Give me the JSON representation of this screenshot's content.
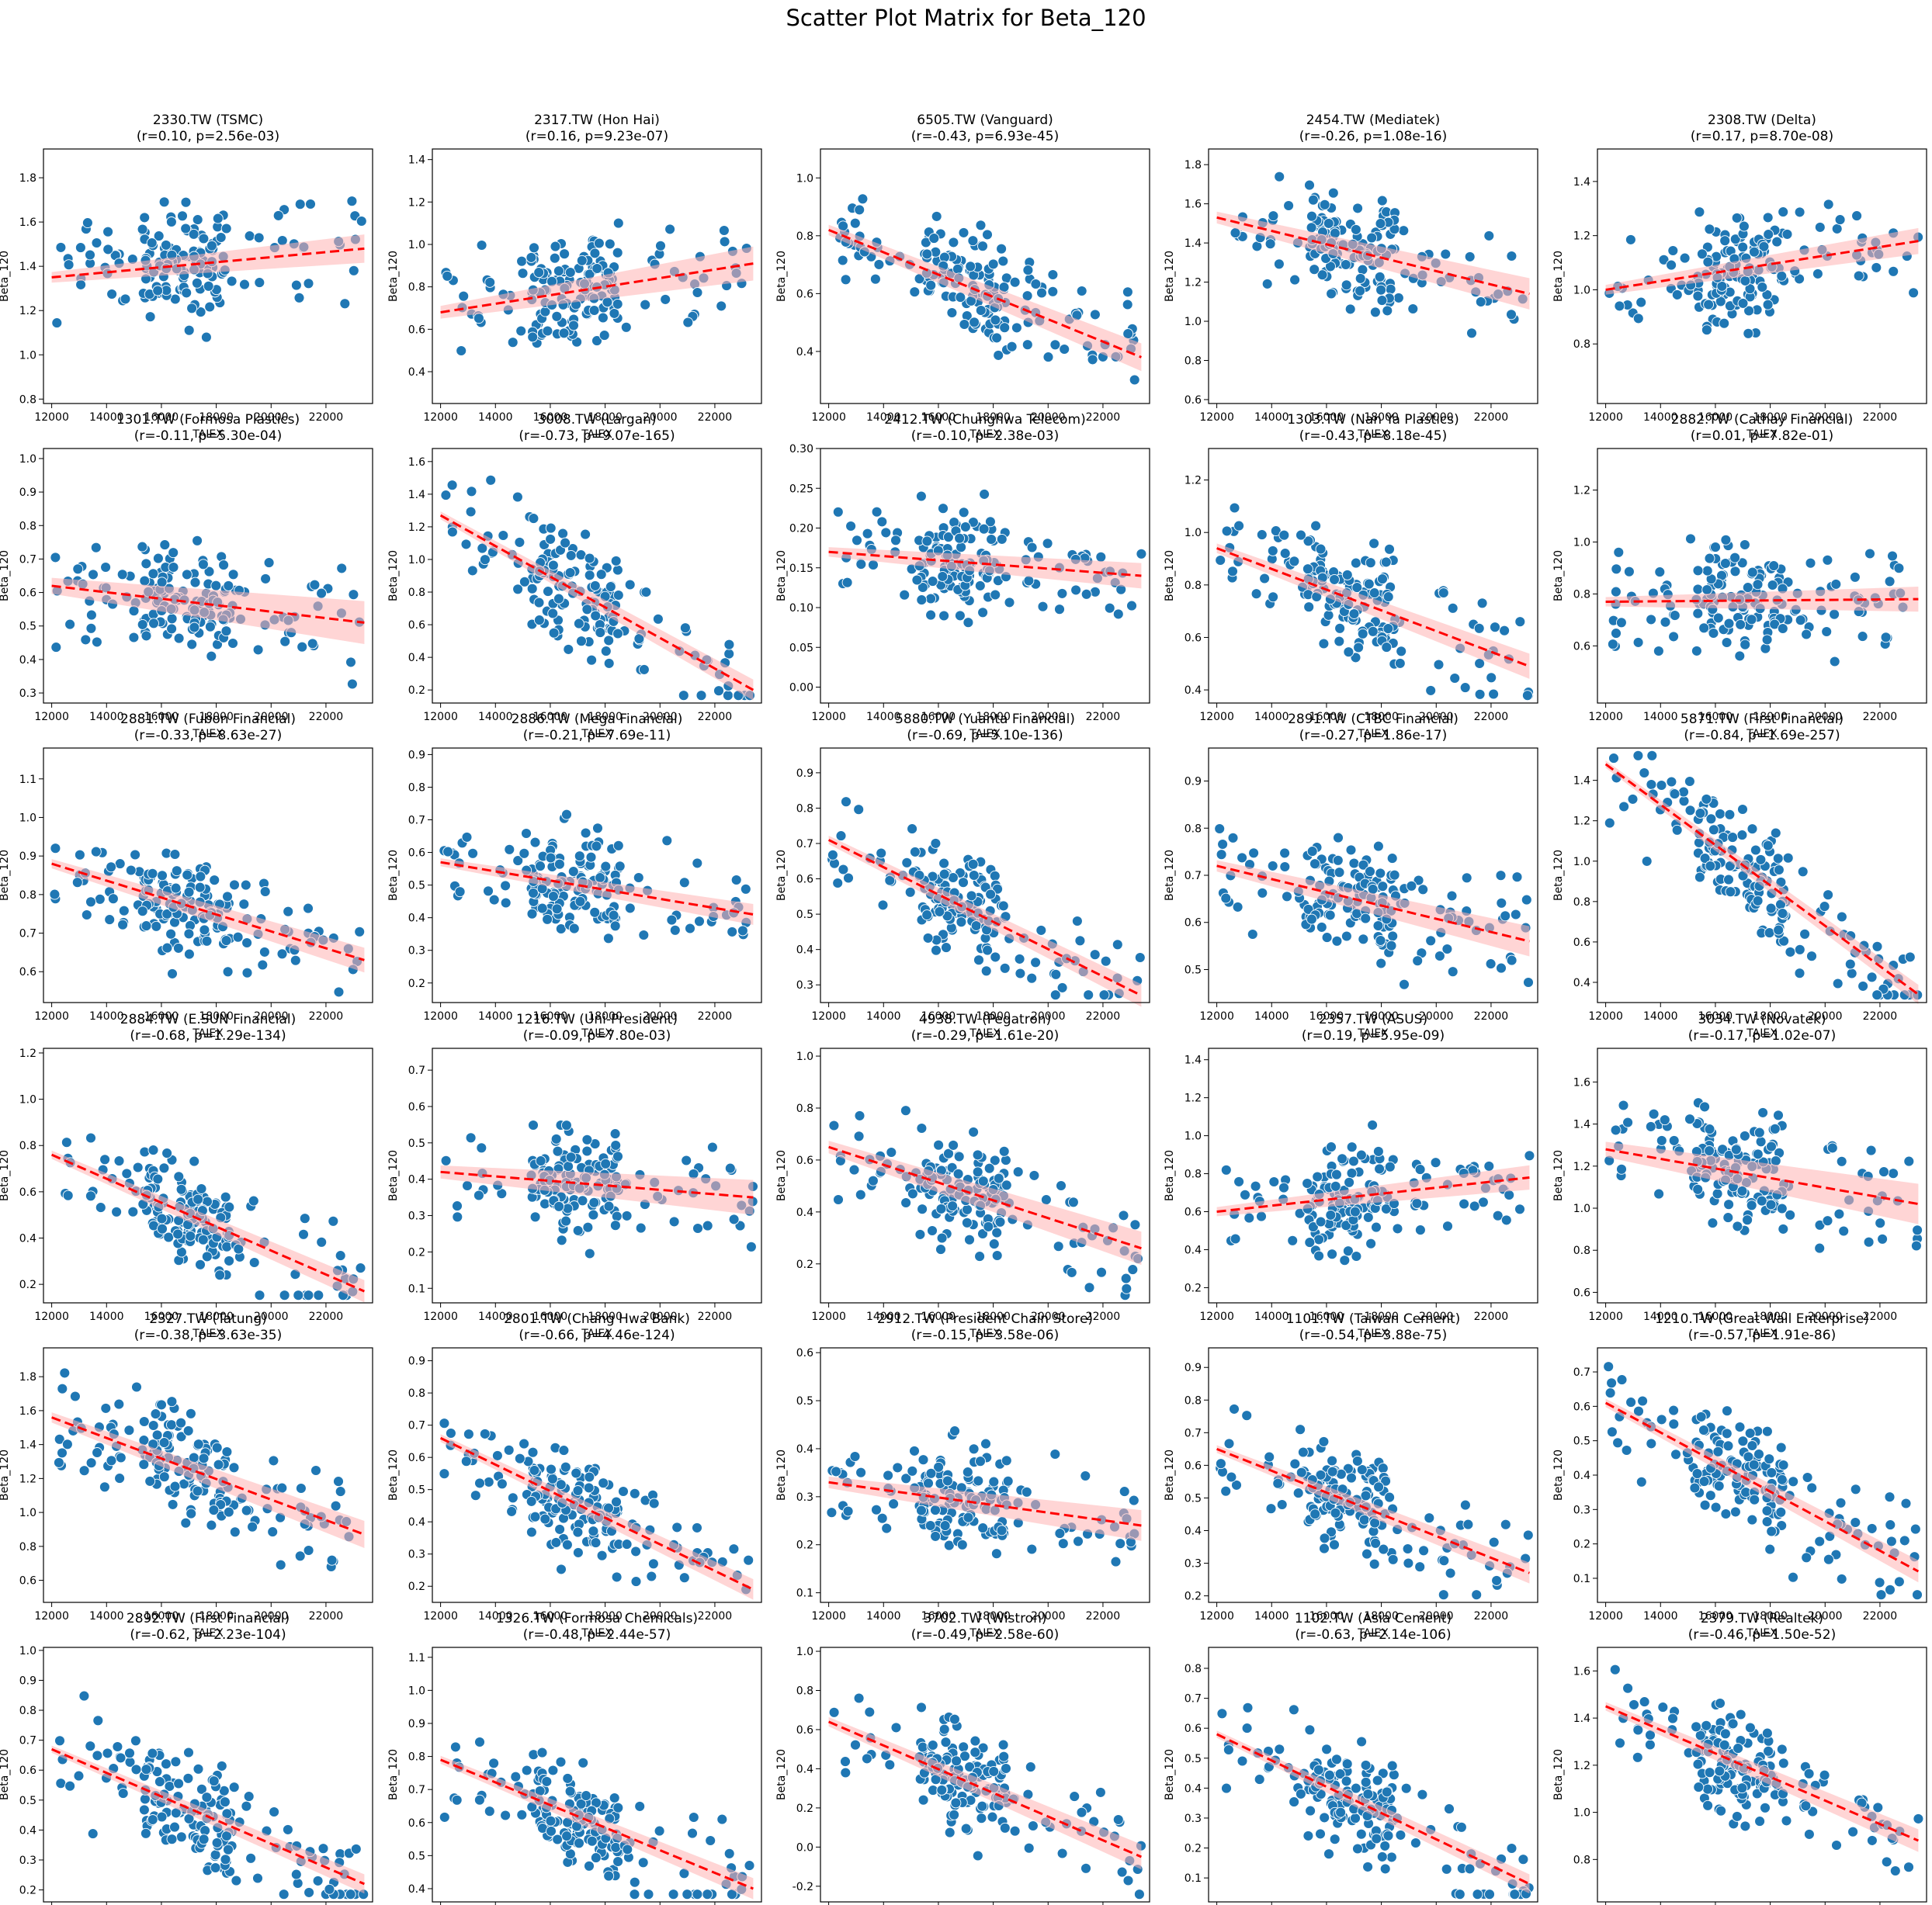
{
  "figure": {
    "title": "Scatter Plot Matrix for Beta_120",
    "xlabel": "TAIEX",
    "ylabel": "Beta_120",
    "xticks": [
      12000,
      14000,
      16000,
      18000,
      20000,
      22000
    ],
    "xlim": [
      11700,
      23700
    ]
  },
  "colors": {
    "points": "#1f77b4",
    "point_edge": "#ffffff",
    "fit_line": "#ff0000",
    "ci_band": "#ffb3b3"
  },
  "chart_data": [
    {
      "type": "scatter",
      "ticker": "2330.TW (TSMC)",
      "stats": "(r=0.10, p=2.56e-03)",
      "ylim": [
        0.78,
        1.93
      ],
      "yticks": [
        "0.8",
        "1.0",
        "1.2",
        "1.4",
        "1.6",
        "1.8"
      ],
      "fit": [
        1.35,
        1.48
      ],
      "ci": 0.04
    },
    {
      "type": "scatter",
      "ticker": "2317.TW (Hon Hai)",
      "stats": "(r=0.16, p=9.23e-07)",
      "ylim": [
        0.25,
        1.45
      ],
      "yticks": [
        "0.4",
        "0.6",
        "0.8",
        "1.0",
        "1.2",
        "1.4"
      ],
      "fit": [
        0.68,
        0.91
      ],
      "ci": 0.05
    },
    {
      "type": "scatter",
      "ticker": "6505.TW (Vanguard)",
      "stats": "(r=-0.43, p=6.93e-45)",
      "ylim": [
        0.22,
        1.1
      ],
      "yticks": [
        "0.4",
        "0.6",
        "0.8",
        "1.0"
      ],
      "fit": [
        0.82,
        0.38
      ],
      "ci": 0.03
    },
    {
      "type": "scatter",
      "ticker": "2454.TW (Mediatek)",
      "stats": "(r=-0.26, p=1.08e-16)",
      "ylim": [
        0.58,
        1.88
      ],
      "yticks": [
        "0.6",
        "0.8",
        "1.0",
        "1.2",
        "1.4",
        "1.6",
        "1.8"
      ],
      "fit": [
        1.53,
        1.14
      ],
      "ci": 0.05
    },
    {
      "type": "scatter",
      "ticker": "2308.TW (Delta)",
      "stats": "(r=0.17, p=8.70e-08)",
      "ylim": [
        0.58,
        1.52
      ],
      "yticks": [
        "0.8",
        "1.0",
        "1.2",
        "1.4"
      ],
      "fit": [
        1.0,
        1.18
      ],
      "ci": 0.03
    },
    {
      "type": "scatter",
      "ticker": "1301.TW (Formosa Plastics)",
      "stats": "(r=-0.11, p=5.30e-04)",
      "ylim": [
        0.27,
        1.03
      ],
      "yticks": [
        "0.3",
        "0.4",
        "0.5",
        "0.6",
        "0.7",
        "0.8",
        "0.9",
        "1.0"
      ],
      "fit": [
        0.62,
        0.51
      ],
      "ci": 0.04
    },
    {
      "type": "scatter",
      "ticker": "3008.TW (Largan)",
      "stats": "(r=-0.73, p=9.07e-165)",
      "ylim": [
        0.12,
        1.68
      ],
      "yticks": [
        "0.2",
        "0.4",
        "0.6",
        "0.8",
        "1.0",
        "1.2",
        "1.4",
        "1.6"
      ],
      "fit": [
        1.27,
        0.2
      ],
      "ci": 0.04
    },
    {
      "type": "scatter",
      "ticker": "2412.TW (Chunghwa Telecom)",
      "stats": "(r=-0.10, p=2.38e-03)",
      "ylim": [
        -0.02,
        0.3
      ],
      "yticks": [
        "0.00",
        "0.05",
        "0.10",
        "0.15",
        "0.20",
        "0.25",
        "0.30"
      ],
      "fit": [
        0.17,
        0.14
      ],
      "ci": 0.01
    },
    {
      "type": "scatter",
      "ticker": "1303.TW (Nan Ya Plastics)",
      "stats": "(r=-0.43, p=8.18e-45)",
      "ylim": [
        0.35,
        1.32
      ],
      "yticks": [
        "0.4",
        "0.6",
        "0.8",
        "1.0",
        "1.2"
      ],
      "fit": [
        0.94,
        0.49
      ],
      "ci": 0.03
    },
    {
      "type": "scatter",
      "ticker": "2882.TW (Cathay Financial)",
      "stats": "(r=0.01, p=7.82e-01)",
      "ylim": [
        0.38,
        1.36
      ],
      "yticks": [
        "0.6",
        "0.8",
        "1.0",
        "1.2"
      ],
      "fit": [
        0.77,
        0.78
      ],
      "ci": 0.03
    },
    {
      "type": "scatter",
      "ticker": "2881.TW (Fubon Financial)",
      "stats": "(r=-0.33, p=8.63e-27)",
      "ylim": [
        0.52,
        1.18
      ],
      "yticks": [
        "0.6",
        "0.7",
        "0.8",
        "0.9",
        "1.0",
        "1.1"
      ],
      "fit": [
        0.88,
        0.63
      ],
      "ci": 0.02
    },
    {
      "type": "scatter",
      "ticker": "2886.TW (Mega Financial)",
      "stats": "(r=-0.21, p=7.69e-11)",
      "ylim": [
        0.14,
        0.92
      ],
      "yticks": [
        "0.2",
        "0.3",
        "0.4",
        "0.5",
        "0.6",
        "0.7",
        "0.8",
        "0.9"
      ],
      "fit": [
        0.57,
        0.41
      ],
      "ci": 0.02
    },
    {
      "type": "scatter",
      "ticker": "5880.TW (Yuanta Financial)",
      "stats": "(r=-0.69, p=5.10e-136)",
      "ylim": [
        0.25,
        0.97
      ],
      "yticks": [
        "0.3",
        "0.4",
        "0.5",
        "0.6",
        "0.7",
        "0.8",
        "0.9"
      ],
      "fit": [
        0.71,
        0.27
      ],
      "ci": 0.02
    },
    {
      "type": "scatter",
      "ticker": "2891.TW (CTBC Financial)",
      "stats": "(r=-0.27, p=1.86e-17)",
      "ylim": [
        0.43,
        0.97
      ],
      "yticks": [
        "0.5",
        "0.6",
        "0.7",
        "0.8",
        "0.9"
      ],
      "fit": [
        0.72,
        0.56
      ],
      "ci": 0.02
    },
    {
      "type": "scatter",
      "ticker": "5871.TW (First Financial)",
      "stats": "(r=-0.84, p=1.69e-257)",
      "ylim": [
        0.3,
        1.56
      ],
      "yticks": [
        "0.4",
        "0.6",
        "0.8",
        "1.0",
        "1.2",
        "1.4"
      ],
      "fit": [
        1.48,
        0.34
      ],
      "ci": 0.03
    },
    {
      "type": "scatter",
      "ticker": "2884.TW (E.SUN Financial)",
      "stats": "(r=-0.68, p=1.29e-134)",
      "ylim": [
        0.12,
        1.22
      ],
      "yticks": [
        "0.2",
        "0.4",
        "0.6",
        "0.8",
        "1.0",
        "1.2"
      ],
      "fit": [
        0.76,
        0.17
      ],
      "ci": 0.03
    },
    {
      "type": "scatter",
      "ticker": "1216.TW (Uni-President)",
      "stats": "(r=-0.09, p=7.80e-03)",
      "ylim": [
        0.06,
        0.76
      ],
      "yticks": [
        "0.1",
        "0.2",
        "0.3",
        "0.4",
        "0.5",
        "0.6",
        "0.7"
      ],
      "fit": [
        0.42,
        0.35
      ],
      "ci": 0.03
    },
    {
      "type": "scatter",
      "ticker": "4938.TW (Pegatron)",
      "stats": "(r=-0.29, p=1.61e-20)",
      "ylim": [
        0.05,
        1.03
      ],
      "yticks": [
        "0.2",
        "0.4",
        "0.6",
        "0.8",
        "1.0"
      ],
      "fit": [
        0.65,
        0.26
      ],
      "ci": 0.04
    },
    {
      "type": "scatter",
      "ticker": "2357.TW (ASUS)",
      "stats": "(r=0.19, p=5.95e-09)",
      "ylim": [
        0.12,
        1.46
      ],
      "yticks": [
        "0.2",
        "0.4",
        "0.6",
        "0.8",
        "1.0",
        "1.2",
        "1.4"
      ],
      "fit": [
        0.6,
        0.78
      ],
      "ci": 0.04
    },
    {
      "type": "scatter",
      "ticker": "3034.TW (Novatek)",
      "stats": "(r=-0.17, p=1.02e-07)",
      "ylim": [
        0.55,
        1.76
      ],
      "yticks": [
        "0.6",
        "0.8",
        "1.0",
        "1.2",
        "1.4",
        "1.6"
      ],
      "fit": [
        1.28,
        1.02
      ],
      "ci": 0.06
    },
    {
      "type": "scatter",
      "ticker": "2327.TW (Tatung)",
      "stats": "(r=-0.38, p=3.63e-35)",
      "ylim": [
        0.47,
        1.97
      ],
      "yticks": [
        "0.6",
        "0.8",
        "1.0",
        "1.2",
        "1.4",
        "1.6",
        "1.8"
      ],
      "fit": [
        1.56,
        0.87
      ],
      "ci": 0.05
    },
    {
      "type": "scatter",
      "ticker": "2801.TW (Chang Hwa Bank)",
      "stats": "(r=-0.66, p=4.46e-124)",
      "ylim": [
        0.15,
        0.94
      ],
      "yticks": [
        "0.2",
        "0.3",
        "0.4",
        "0.5",
        "0.6",
        "0.7",
        "0.8",
        "0.9"
      ],
      "fit": [
        0.66,
        0.19
      ],
      "ci": 0.02
    },
    {
      "type": "scatter",
      "ticker": "2912.TW (President Chain Store)",
      "stats": "(r=-0.15, p=3.58e-06)",
      "ylim": [
        0.08,
        0.61
      ],
      "yticks": [
        "0.1",
        "0.2",
        "0.3",
        "0.4",
        "0.5",
        "0.6"
      ],
      "fit": [
        0.33,
        0.24
      ],
      "ci": 0.02
    },
    {
      "type": "scatter",
      "ticker": "1101.TW (Taiwan Cement)",
      "stats": "(r=-0.54, p=3.88e-75)",
      "ylim": [
        0.18,
        0.96
      ],
      "yticks": [
        "0.2",
        "0.3",
        "0.4",
        "0.5",
        "0.6",
        "0.7",
        "0.8",
        "0.9"
      ],
      "fit": [
        0.65,
        0.27
      ],
      "ci": 0.02
    },
    {
      "type": "scatter",
      "ticker": "1210.TW (Great Wall Enterprise)",
      "stats": "(r=-0.57, p=1.91e-86)",
      "ylim": [
        0.03,
        0.77
      ],
      "yticks": [
        "0.1",
        "0.2",
        "0.3",
        "0.4",
        "0.5",
        "0.6",
        "0.7"
      ],
      "fit": [
        0.61,
        0.12
      ],
      "ci": 0.02
    },
    {
      "type": "scatter",
      "ticker": "2892.TW (First Financial)",
      "stats": "(r=-0.62, p=2.23e-104)",
      "ylim": [
        0.16,
        1.01
      ],
      "yticks": [
        "0.2",
        "0.3",
        "0.4",
        "0.5",
        "0.6",
        "0.7",
        "0.8",
        "0.9",
        "1.0"
      ],
      "fit": [
        0.67,
        0.22
      ],
      "ci": 0.02
    },
    {
      "type": "scatter",
      "ticker": "1326.TW (Formosa Chemicals)",
      "stats": "(r=-0.48, p=2.44e-57)",
      "ylim": [
        0.36,
        1.13
      ],
      "yticks": [
        "0.4",
        "0.5",
        "0.6",
        "0.7",
        "0.8",
        "0.9",
        "1.0",
        "1.1"
      ],
      "fit": [
        0.79,
        0.4
      ],
      "ci": 0.02
    },
    {
      "type": "scatter",
      "ticker": "3702.TW (Wistron)",
      "stats": "(r=-0.49, p=2.58e-60)",
      "ylim": [
        -0.28,
        1.02
      ],
      "yticks": [
        "-0.2",
        "0.0",
        "0.2",
        "0.4",
        "0.6",
        "0.8",
        "1.0"
      ],
      "fit": [
        0.64,
        -0.05
      ],
      "ci": 0.04
    },
    {
      "type": "scatter",
      "ticker": "1102.TW (Asia Cement)",
      "stats": "(r=-0.63, p=2.14e-106)",
      "ylim": [
        0.02,
        0.87
      ],
      "yticks": [
        "0.1",
        "0.2",
        "0.3",
        "0.4",
        "0.5",
        "0.6",
        "0.7",
        "0.8"
      ],
      "fit": [
        0.58,
        0.08
      ],
      "ci": 0.02
    },
    {
      "type": "scatter",
      "ticker": "2379.TW (Realtek)",
      "stats": "(r=-0.46, p=1.50e-52)",
      "ylim": [
        0.62,
        1.7
      ],
      "yticks": [
        "0.8",
        "1.0",
        "1.2",
        "1.4",
        "1.6"
      ],
      "fit": [
        1.45,
        0.88
      ],
      "ci": 0.03
    }
  ]
}
